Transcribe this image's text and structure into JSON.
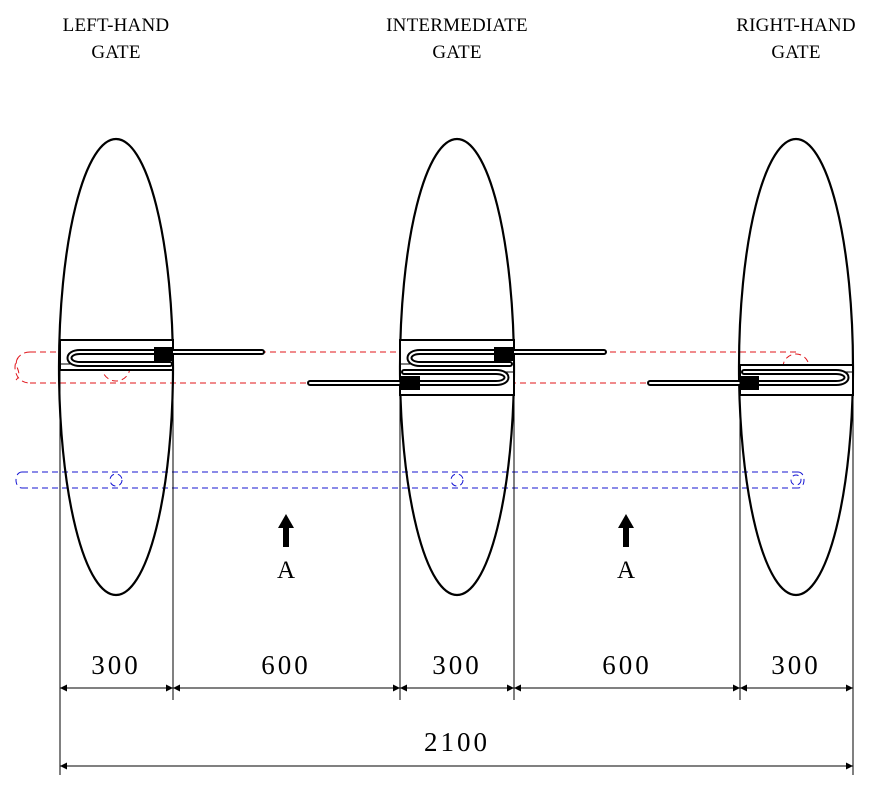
{
  "gates": {
    "left": {
      "line1": "LEFT-HAND",
      "line2": "GATE"
    },
    "intermediate": {
      "line1": "INTERMEDIATE",
      "line2": "GATE"
    },
    "right": {
      "line1": "RIGHT-HAND",
      "line2": "GATE"
    }
  },
  "passage_arrows": {
    "label": "A"
  },
  "dimensions": {
    "segments": [
      "300",
      "600",
      "300",
      "600",
      "300"
    ],
    "total": "2100"
  },
  "colors": {
    "outline": "#000000",
    "upper_arm_path": "#e0141a",
    "lower_arm_path": "#1414d2"
  }
}
